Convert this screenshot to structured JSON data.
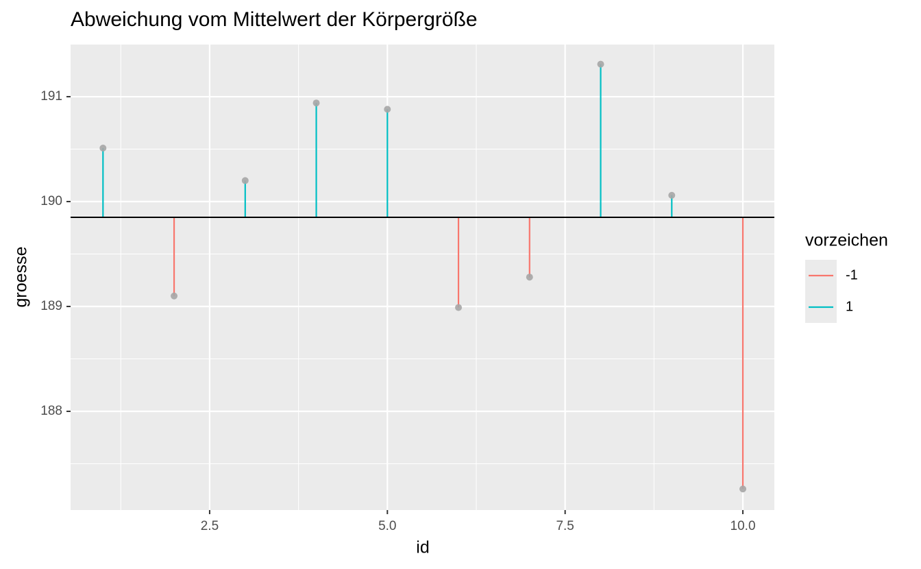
{
  "chart_data": {
    "type": "lollipop",
    "title": "Abweichung vom Mittelwert der Körpergröße",
    "x_label": "id",
    "y_label": "groesse",
    "x": [
      1,
      2,
      3,
      4,
      5,
      6,
      7,
      8,
      9,
      10
    ],
    "series": [
      {
        "name": "-1",
        "color": "#f8766d",
        "values": [
          null,
          189.1,
          null,
          null,
          null,
          188.99,
          189.28,
          null,
          null,
          187.26
        ]
      },
      {
        "name": "1",
        "color": "#00bfc4",
        "values": [
          190.51,
          null,
          190.2,
          190.94,
          190.88,
          null,
          null,
          191.31,
          190.06,
          null
        ]
      }
    ],
    "point_color": "#a6a6a6",
    "baseline": 189.85,
    "legend_title": "vorzeichen",
    "xlim": [
      0.544,
      10.443
    ],
    "xticks": [
      2.5,
      {
        "value": 5,
        "label": "5.0"
      },
      7.5,
      {
        "value": 10,
        "label": "10.0"
      }
    ],
    "ylim": [
      187.059,
      191.497
    ],
    "yticks": [
      188,
      189,
      190,
      191
    ],
    "grid": true
  }
}
